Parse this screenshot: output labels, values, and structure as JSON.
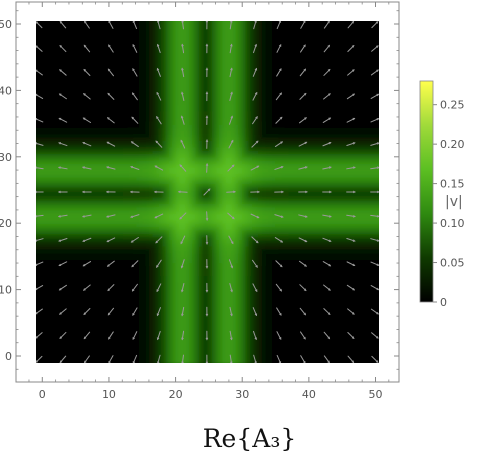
{
  "chart_data": {
    "type": "heatmap",
    "subtype": "vector-field-density",
    "title": "Re{A₃}",
    "xlabel": "",
    "ylabel": "",
    "xlim": [
      0,
      50
    ],
    "ylim": [
      0,
      50
    ],
    "xticks": [
      0,
      10,
      20,
      30,
      40,
      50
    ],
    "yticks": [
      0,
      10,
      20,
      30,
      40,
      50
    ],
    "grid": false,
    "field": {
      "description_of_structure": "bright bands of |v|",
      "vertical_bands_x": [
        21,
        28
      ],
      "horizontal_bands_y": [
        21,
        28
      ],
      "band_halfwidth": 2.6,
      "band_peak_value": 0.13,
      "crossing_peak_value": 0.17
    },
    "colorbar": {
      "label": "|v|",
      "range": [
        0,
        0.28
      ],
      "ticks": [
        0,
        0.05,
        0.1,
        0.15,
        0.2,
        0.25
      ],
      "tick_labels": [
        "0",
        "0.05",
        "0.10",
        "0.15",
        "0.20",
        "0.25"
      ],
      "colors": [
        "#000000",
        "#0f3a00",
        "#2f8a10",
        "#5cbf22",
        "#a0da3a",
        "#ffff4d"
      ]
    },
    "arrow_color": "#9a9a9a",
    "frame_color": "#888888",
    "background_color": "#000000"
  }
}
